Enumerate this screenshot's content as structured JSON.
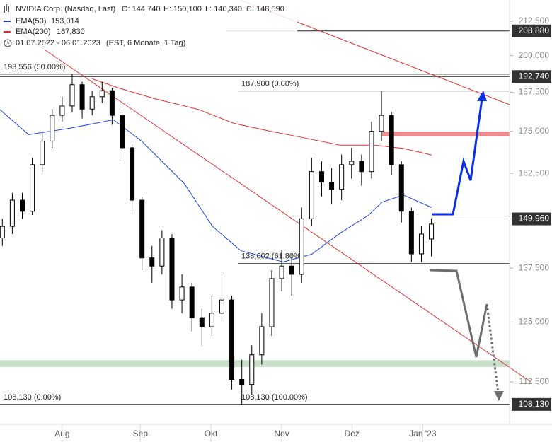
{
  "chart_data": {
    "type": "candlestick",
    "title": "NVIDIA Corp. (Nasdaq, Last)",
    "ohlc_labels": [
      "O: 144,740",
      "H: 150,100",
      "L: 140,340",
      "C: 148,590"
    ],
    "subtitle": "01.07.2022 - 06.01.2023",
    "subtitle_note": "(EST, 6 Monate, 1 Tag)",
    "x": [
      3,
      6,
      9,
      12,
      15,
      18,
      21,
      24,
      27,
      30,
      33,
      36,
      39,
      42,
      45,
      48,
      51,
      54,
      57,
      60,
      63,
      66,
      69,
      72,
      75,
      78,
      81,
      84,
      87,
      90,
      93,
      96,
      99,
      102,
      105,
      108,
      111,
      114,
      117,
      120,
      123,
      126,
      129,
      132
    ],
    "open": [
      145,
      148,
      155,
      152,
      165,
      172,
      180,
      183,
      190,
      182,
      186,
      188,
      180,
      170,
      155,
      140,
      138,
      145,
      130,
      133,
      126,
      124,
      127,
      130,
      113,
      112,
      118,
      124,
      135,
      138,
      136,
      150,
      163,
      160,
      158,
      165,
      166,
      163,
      175,
      180,
      165,
      152,
      141,
      144.74
    ],
    "high": [
      150,
      157,
      157,
      167,
      175,
      182,
      186,
      193.556,
      191,
      188,
      191,
      189,
      181,
      171,
      156,
      143,
      147,
      146,
      136,
      134,
      128,
      131,
      136,
      131,
      117,
      120,
      127,
      137,
      142,
      141,
      153,
      167,
      166,
      164,
      168,
      170,
      168,
      178,
      187.9,
      181,
      166,
      153,
      148,
      150.1
    ],
    "low": [
      143,
      146,
      150,
      151,
      163,
      170,
      178,
      181,
      179,
      180,
      184,
      177,
      166,
      152,
      137,
      134,
      136,
      128,
      127,
      123,
      120,
      122,
      125,
      111,
      108.13,
      110,
      116,
      122,
      132,
      131,
      134,
      148,
      156,
      154,
      155,
      161,
      159,
      161,
      172,
      162,
      149,
      139,
      139,
      140.34
    ],
    "close": [
      148,
      155,
      152,
      165,
      172,
      180,
      183,
      190,
      182,
      186,
      188,
      180,
      170,
      155,
      140,
      138,
      145,
      130,
      133,
      126,
      124,
      127,
      130,
      113,
      112,
      118,
      124,
      135,
      138,
      136,
      150,
      163,
      160,
      158,
      165,
      166,
      163,
      175,
      180,
      165,
      152,
      141,
      146,
      148.59
    ],
    "up_color": "#ffffff",
    "down_color": "#000000",
    "lines": [
      {
        "name": "EMA(50)",
        "value_label": "153,014",
        "color": "#2346e0",
        "x": [
          2.3,
          10.9,
          23.6,
          36.4,
          44.9,
          57.7,
          66.2,
          74.7,
          87.4,
          96,
          104.5,
          113,
          117.2,
          123.6,
          132.1
        ],
        "values": [
          181.8,
          174,
          176,
          178.6,
          172,
          159.6,
          148,
          141.8,
          139,
          140.9,
          146.2,
          150.9,
          154.5,
          156.4,
          153.014
        ]
      },
      {
        "name": "EMA(200)",
        "value_label": "167,830",
        "color": "#e03232",
        "x": [
          30,
          38.5,
          49.1,
          61.9,
          72.6,
          83.2,
          93.8,
          104.5,
          115.1,
          123.6,
          132.1
        ],
        "values": [
          192,
          188.7,
          185.3,
          181.9,
          177.5,
          175.1,
          173,
          170.8,
          170.8,
          169.8,
          167.83
        ]
      }
    ],
    "ylim": [
      104.4,
      220.6
    ],
    "ylog": true,
    "yticks": [
      {
        "value": 112.5,
        "label": "112,500"
      },
      {
        "value": 125,
        "label": "125,000"
      },
      {
        "value": 137.5,
        "label": "137,500"
      },
      {
        "value": 150,
        "label": "150,000"
      },
      {
        "value": 162.5,
        "label": "162,500"
      },
      {
        "value": 175,
        "label": "175,000"
      },
      {
        "value": 187.5,
        "label": "187,500"
      },
      {
        "value": 200,
        "label": "200,000"
      },
      {
        "value": 212.5,
        "label": "212,500"
      }
    ],
    "xlim": [
      2.3,
      155.5
    ],
    "xticks": [
      {
        "value": 21,
        "label": "Aug"
      },
      {
        "value": 44.5,
        "label": "Sep"
      },
      {
        "value": 65.7,
        "label": "Okt"
      },
      {
        "value": 87,
        "label": "Nov"
      },
      {
        "value": 108.1,
        "label": "Dez"
      },
      {
        "value": 129.4,
        "label": "Jan '23"
      }
    ],
    "levels": [
      {
        "value": 208.88,
        "label": "208,880"
      },
      {
        "value": 192.74,
        "label": "192,740"
      },
      {
        "value": 149.96,
        "label": "149,960"
      },
      {
        "value": 108.13,
        "label": "108,130"
      }
    ],
    "fib_levels": [
      {
        "value": 193.556,
        "label": "193,556 (50.00%)"
      },
      {
        "value": 187.9,
        "label": "187,900 (0.00%)"
      },
      {
        "value": 138.602,
        "label": "138,602 (61.80%)"
      },
      {
        "value": 108.13,
        "label": "108,130 (0.00%)"
      },
      {
        "value": 108.13,
        "label": "108,130 (100.00%)"
      }
    ],
    "zones": [
      {
        "from": 115.5,
        "to": 116.9,
        "color": "#c9dfc9"
      },
      {
        "from": 173.6,
        "to": 174.9,
        "color": "#f08a8a"
      }
    ]
  }
}
